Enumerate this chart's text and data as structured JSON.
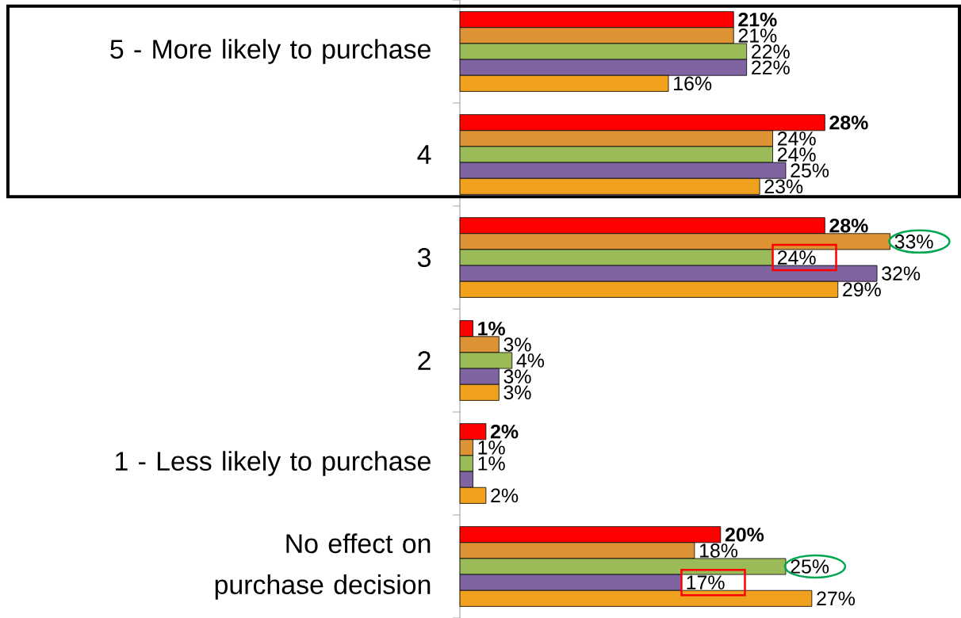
{
  "chart_data": {
    "type": "bar",
    "orientation": "horizontal",
    "categories": [
      "5 - More likely to purchase",
      "4",
      "3",
      "2",
      "1 - Less likely to purchase",
      "No effect on purchase decision"
    ],
    "series": [
      {
        "color": "#ff0000",
        "values": [
          21,
          28,
          28,
          1,
          2,
          20
        ],
        "value_labels": [
          "21%",
          "28%",
          "28%",
          "1%",
          "2%",
          "20%"
        ]
      },
      {
        "color": "#dd9334",
        "values": [
          21,
          24,
          33,
          3,
          1,
          18
        ],
        "value_labels": [
          "21%",
          "24%",
          "33%",
          "3%",
          "1%",
          "18%"
        ]
      },
      {
        "color": "#9bbb59",
        "values": [
          22,
          24,
          24,
          4,
          1,
          25
        ],
        "value_labels": [
          "22%",
          "24%",
          "24%",
          "4%",
          "1%",
          "25%"
        ]
      },
      {
        "color": "#8064a2",
        "values": [
          22,
          25,
          32,
          3,
          1,
          17
        ],
        "value_labels": [
          "22%",
          "25%",
          "32%",
          "3%",
          null,
          "17%"
        ]
      },
      {
        "color": "#f0a21e",
        "values": [
          16,
          23,
          29,
          3,
          2,
          27
        ],
        "value_labels": [
          "16%",
          "23%",
          "29%",
          "3%",
          "2%",
          "27%"
        ]
      }
    ],
    "grid": false
  }
}
